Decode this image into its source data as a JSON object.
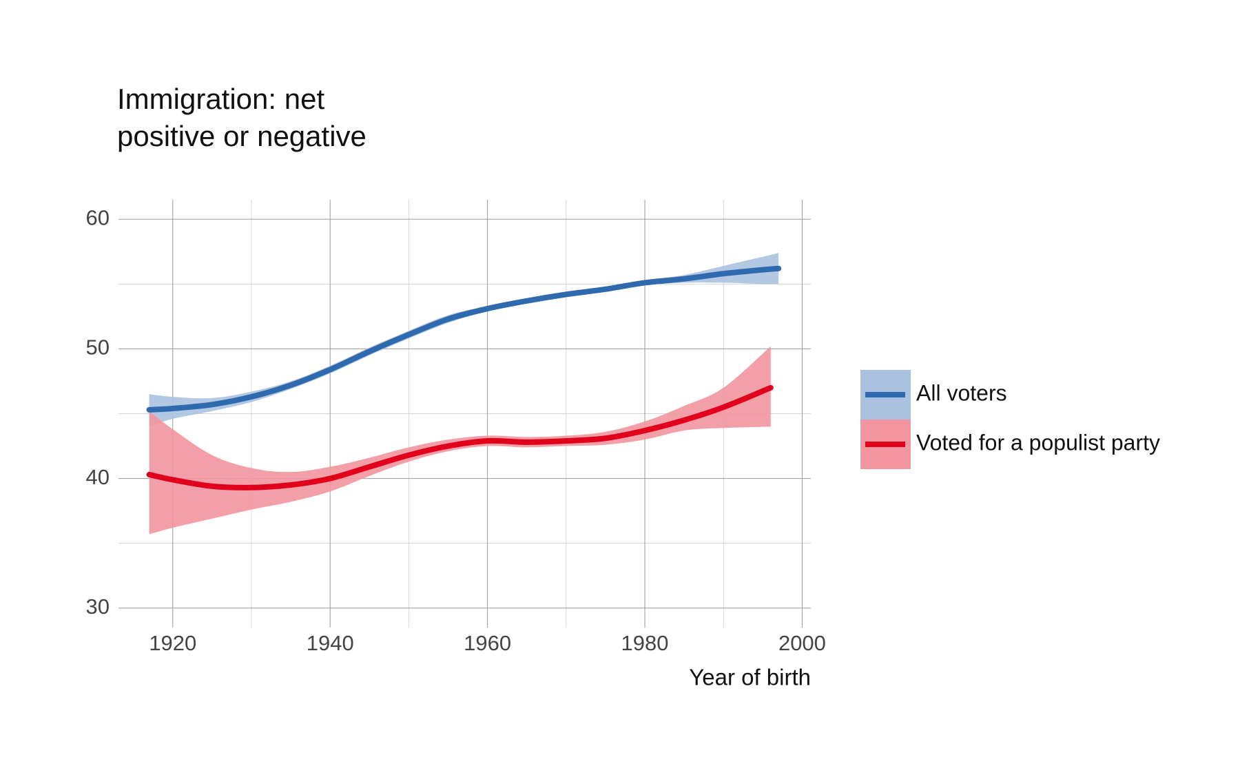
{
  "chart_data": {
    "type": "line",
    "title": [
      "Immigration: net",
      "positive or negative"
    ],
    "x_label": "Year of birth",
    "xlim": [
      1913.1,
      2001.1
    ],
    "ylim": [
      28.5,
      61.5
    ],
    "xticks": [
      1920,
      1940,
      1960,
      1980,
      2000
    ],
    "yticks": [
      30,
      40,
      50,
      60
    ],
    "minor_xticks": [
      1930,
      1950,
      1970,
      1990
    ],
    "minor_yticks": [
      35,
      45,
      55
    ],
    "grid": true,
    "legend": "right",
    "series": [
      {
        "name": "All voters",
        "color": "#2e6aad",
        "band_color": "#aac2e0",
        "x": [
          1917,
          1920,
          1925,
          1930,
          1935,
          1940,
          1945,
          1950,
          1955,
          1960,
          1965,
          1970,
          1975,
          1980,
          1985,
          1990,
          1995,
          1997
        ],
        "values": [
          45.3,
          45.4,
          45.7,
          46.3,
          47.2,
          48.4,
          49.8,
          51.1,
          52.3,
          53.1,
          53.7,
          54.2,
          54.6,
          55.1,
          55.4,
          55.8,
          56.1,
          56.2
        ],
        "lower": [
          44.0,
          44.6,
          45.2,
          45.9,
          46.9,
          48.1,
          49.5,
          50.8,
          52.0,
          52.9,
          53.5,
          54.0,
          54.4,
          54.9,
          55.1,
          55.1,
          55.0,
          55.0
        ],
        "upper": [
          46.5,
          46.3,
          46.2,
          46.7,
          47.5,
          48.7,
          50.1,
          51.4,
          52.6,
          53.3,
          53.9,
          54.4,
          54.8,
          55.3,
          55.7,
          56.4,
          57.1,
          57.4
        ]
      },
      {
        "name": "Voted for a populist party",
        "color": "#e0001b",
        "band_color": "#f2959f",
        "x": [
          1917,
          1920,
          1925,
          1930,
          1935,
          1940,
          1945,
          1950,
          1955,
          1960,
          1965,
          1970,
          1975,
          1980,
          1985,
          1990,
          1996
        ],
        "values": [
          40.3,
          39.9,
          39.4,
          39.3,
          39.5,
          40.0,
          40.9,
          41.8,
          42.5,
          42.9,
          42.8,
          42.9,
          43.1,
          43.7,
          44.5,
          45.5,
          47.0
        ],
        "lower": [
          35.7,
          36.2,
          36.9,
          37.6,
          38.2,
          39.0,
          40.2,
          41.3,
          42.1,
          42.5,
          42.4,
          42.5,
          42.6,
          43.0,
          43.7,
          43.9,
          44.0
        ],
        "upper": [
          45.2,
          43.8,
          41.8,
          40.8,
          40.5,
          40.9,
          41.6,
          42.4,
          43.0,
          43.3,
          43.2,
          43.3,
          43.6,
          44.4,
          45.6,
          47.0,
          50.2
        ]
      }
    ]
  }
}
